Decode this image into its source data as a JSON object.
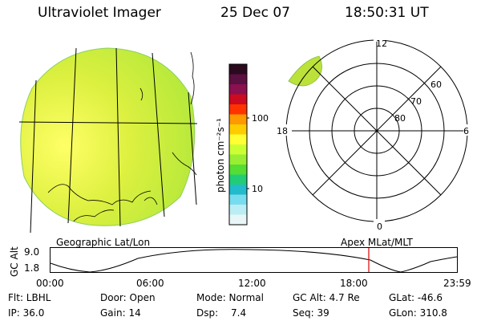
{
  "header": {
    "title": "Ultraviolet Imager",
    "date": "25 Dec 07",
    "time": "18:50:31 UT"
  },
  "left_panel": {
    "caption": "Geographic Lat/Lon"
  },
  "right_panel": {
    "caption": "Apex MLat/MLT",
    "mlt_labels": [
      "12",
      "18",
      "6",
      "0"
    ],
    "lat_labels": [
      "60",
      "70",
      "80"
    ]
  },
  "colorbar": {
    "unit_label": "photon cm⁻²s⁻¹",
    "ticks": [
      "100",
      "10"
    ],
    "colors": [
      "#2b0a20",
      "#5a1040",
      "#8a1050",
      "#cc0a20",
      "#ff3300",
      "#ff9900",
      "#ffcc00",
      "#ffff33",
      "#ccff33",
      "#99ee33",
      "#55dd33",
      "#22cc77",
      "#22bbcc",
      "#77ddee",
      "#bbeef4",
      "#e8f6f8"
    ]
  },
  "altitude_plot": {
    "ylabel": "GC Alt",
    "y_ticks": [
      "9.0",
      "1.8"
    ],
    "x_ticks": [
      "00:00",
      "06:00",
      "12:00",
      "18:00",
      "23:59"
    ],
    "marker_color": "#dd0000"
  },
  "status": {
    "row1": [
      "Flt: LBHL",
      "Door: Open",
      "Mode: Normal",
      "GC Alt: 4.7 Re",
      "GLat: -46.6"
    ],
    "row2_left": [
      "IP: 36.0",
      "Gain: 14"
    ],
    "dsp_label": "Dsp:",
    "dsp_value": "7.4",
    "row2_right": [
      "Seq: 39",
      "GLon: 310.8"
    ]
  }
}
